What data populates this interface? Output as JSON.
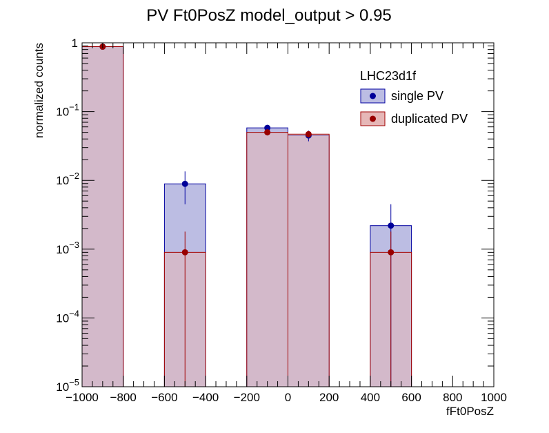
{
  "chart_data": {
    "type": "bar",
    "title": "PV Ft0PosZ  model_output > 0.95",
    "xlabel": "fFt0PosZ",
    "ylabel": "normalized counts",
    "xlim": [
      -1000,
      1000
    ],
    "ylim": [
      1e-05,
      1
    ],
    "yscale": "log",
    "grid": false,
    "legend": {
      "title": "LHC23d1f",
      "placement": "top-right"
    },
    "bin_edges": [
      -1000,
      -800,
      -600,
      -400,
      -200,
      0,
      200,
      400,
      600,
      800,
      1000
    ],
    "x_ticks": [
      {
        "v": -1000,
        "label": "−1000"
      },
      {
        "v": -800,
        "label": "−800"
      },
      {
        "v": -600,
        "label": "−600"
      },
      {
        "v": -400,
        "label": "−400"
      },
      {
        "v": -200,
        "label": "−200"
      },
      {
        "v": 0,
        "label": "0"
      },
      {
        "v": 200,
        "label": "200"
      },
      {
        "v": 400,
        "label": "400"
      },
      {
        "v": 600,
        "label": "600"
      },
      {
        "v": 800,
        "label": "800"
      },
      {
        "v": 1000,
        "label": "1000"
      }
    ],
    "y_ticks": [
      {
        "v": 1,
        "base": "1",
        "exp": ""
      },
      {
        "v": 0.1,
        "base": "10",
        "exp": "−1"
      },
      {
        "v": 0.01,
        "base": "10",
        "exp": "−2"
      },
      {
        "v": 0.001,
        "base": "10",
        "exp": "−3"
      },
      {
        "v": 0.0001,
        "base": "10",
        "exp": "−4"
      },
      {
        "v": 1e-05,
        "base": "10",
        "exp": "−5"
      }
    ],
    "series": [
      {
        "name": "single PV",
        "line_color": "#0000a0",
        "fill_color": "#bcbde3",
        "marker_color": "#000099",
        "bins": [
          {
            "x0": -1000,
            "x1": -800,
            "y": 0.88
          },
          {
            "x0": -600,
            "x1": -400,
            "y": 0.0089,
            "lo": 0.0045,
            "hi": 0.0135
          },
          {
            "x0": -200,
            "x1": 0,
            "y": 0.058,
            "lo": 0.052,
            "hi": 0.064
          },
          {
            "x0": 0,
            "x1": 200,
            "y": 0.045,
            "lo": 0.037,
            "hi": 0.053
          },
          {
            "x0": 400,
            "x1": 600,
            "y": 0.0022,
            "lo": 1e-05,
            "hi": 0.0045
          }
        ]
      },
      {
        "name": "duplicated PV",
        "line_color": "#a00000",
        "fill_color": "#e6b7b7",
        "marker_color": "#990000",
        "bins": [
          {
            "x0": -1000,
            "x1": -800,
            "y": 0.88
          },
          {
            "x0": -600,
            "x1": -400,
            "y": 0.0009,
            "lo": 1e-05,
            "hi": 0.0018
          },
          {
            "x0": -200,
            "x1": 0,
            "y": 0.05,
            "lo": 0.045,
            "hi": 0.055
          },
          {
            "x0": 0,
            "x1": 200,
            "y": 0.047,
            "lo": 0.042,
            "hi": 0.052
          },
          {
            "x0": 400,
            "x1": 600,
            "y": 0.0009,
            "lo": 1e-05,
            "hi": 0.0018
          }
        ]
      }
    ]
  }
}
